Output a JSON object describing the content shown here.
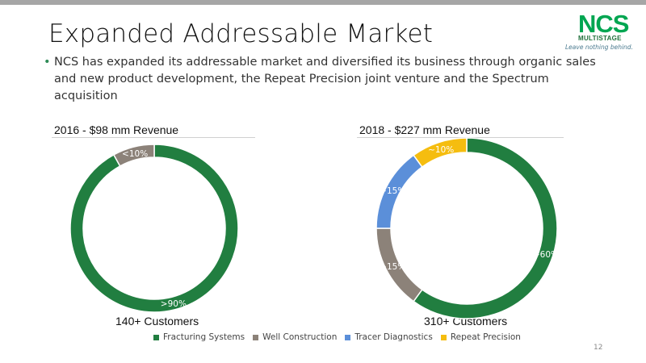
{
  "slide": {
    "title": "Expanded Addressable Market",
    "bullet": "NCS has expanded its addressable market and diversified its business through organic sales and new product development, the Repeat Precision joint venture and the Spectrum acquisition",
    "page_number": "12"
  },
  "logo": {
    "name": "NCS",
    "sub": "MULTISTAGE",
    "tagline": "Leave nothing behind."
  },
  "chart_data": [
    {
      "type": "donut",
      "title": "2016 - $98 mm Revenue",
      "footer": "140+ Customers",
      "categories": [
        "Fracturing Systems",
        "Well Construction"
      ],
      "values": [
        92,
        8
      ],
      "labels": [
        ">90%",
        "<10%"
      ],
      "colors": [
        "#217e40",
        "#8c8279"
      ]
    },
    {
      "type": "donut",
      "title": "2018 - $227 mm Revenue",
      "footer": "310+ Customers",
      "categories": [
        "Fracturing Systems",
        "Well Construction",
        "Tracer Diagnostics",
        "Repeat Precision"
      ],
      "values": [
        60,
        15,
        15,
        10
      ],
      "labels": [
        "~60%",
        "~15%",
        "~15%",
        "~10%"
      ],
      "colors": [
        "#217e40",
        "#8c8279",
        "#5b8fd9",
        "#f5bd0f"
      ]
    }
  ],
  "legend": [
    {
      "label": "Fracturing Systems",
      "color": "#217e40"
    },
    {
      "label": "Well Construction",
      "color": "#8c8279"
    },
    {
      "label": "Tracer Diagnostics",
      "color": "#5b8fd9"
    },
    {
      "label": "Repeat Precision",
      "color": "#f5bd0f"
    }
  ]
}
